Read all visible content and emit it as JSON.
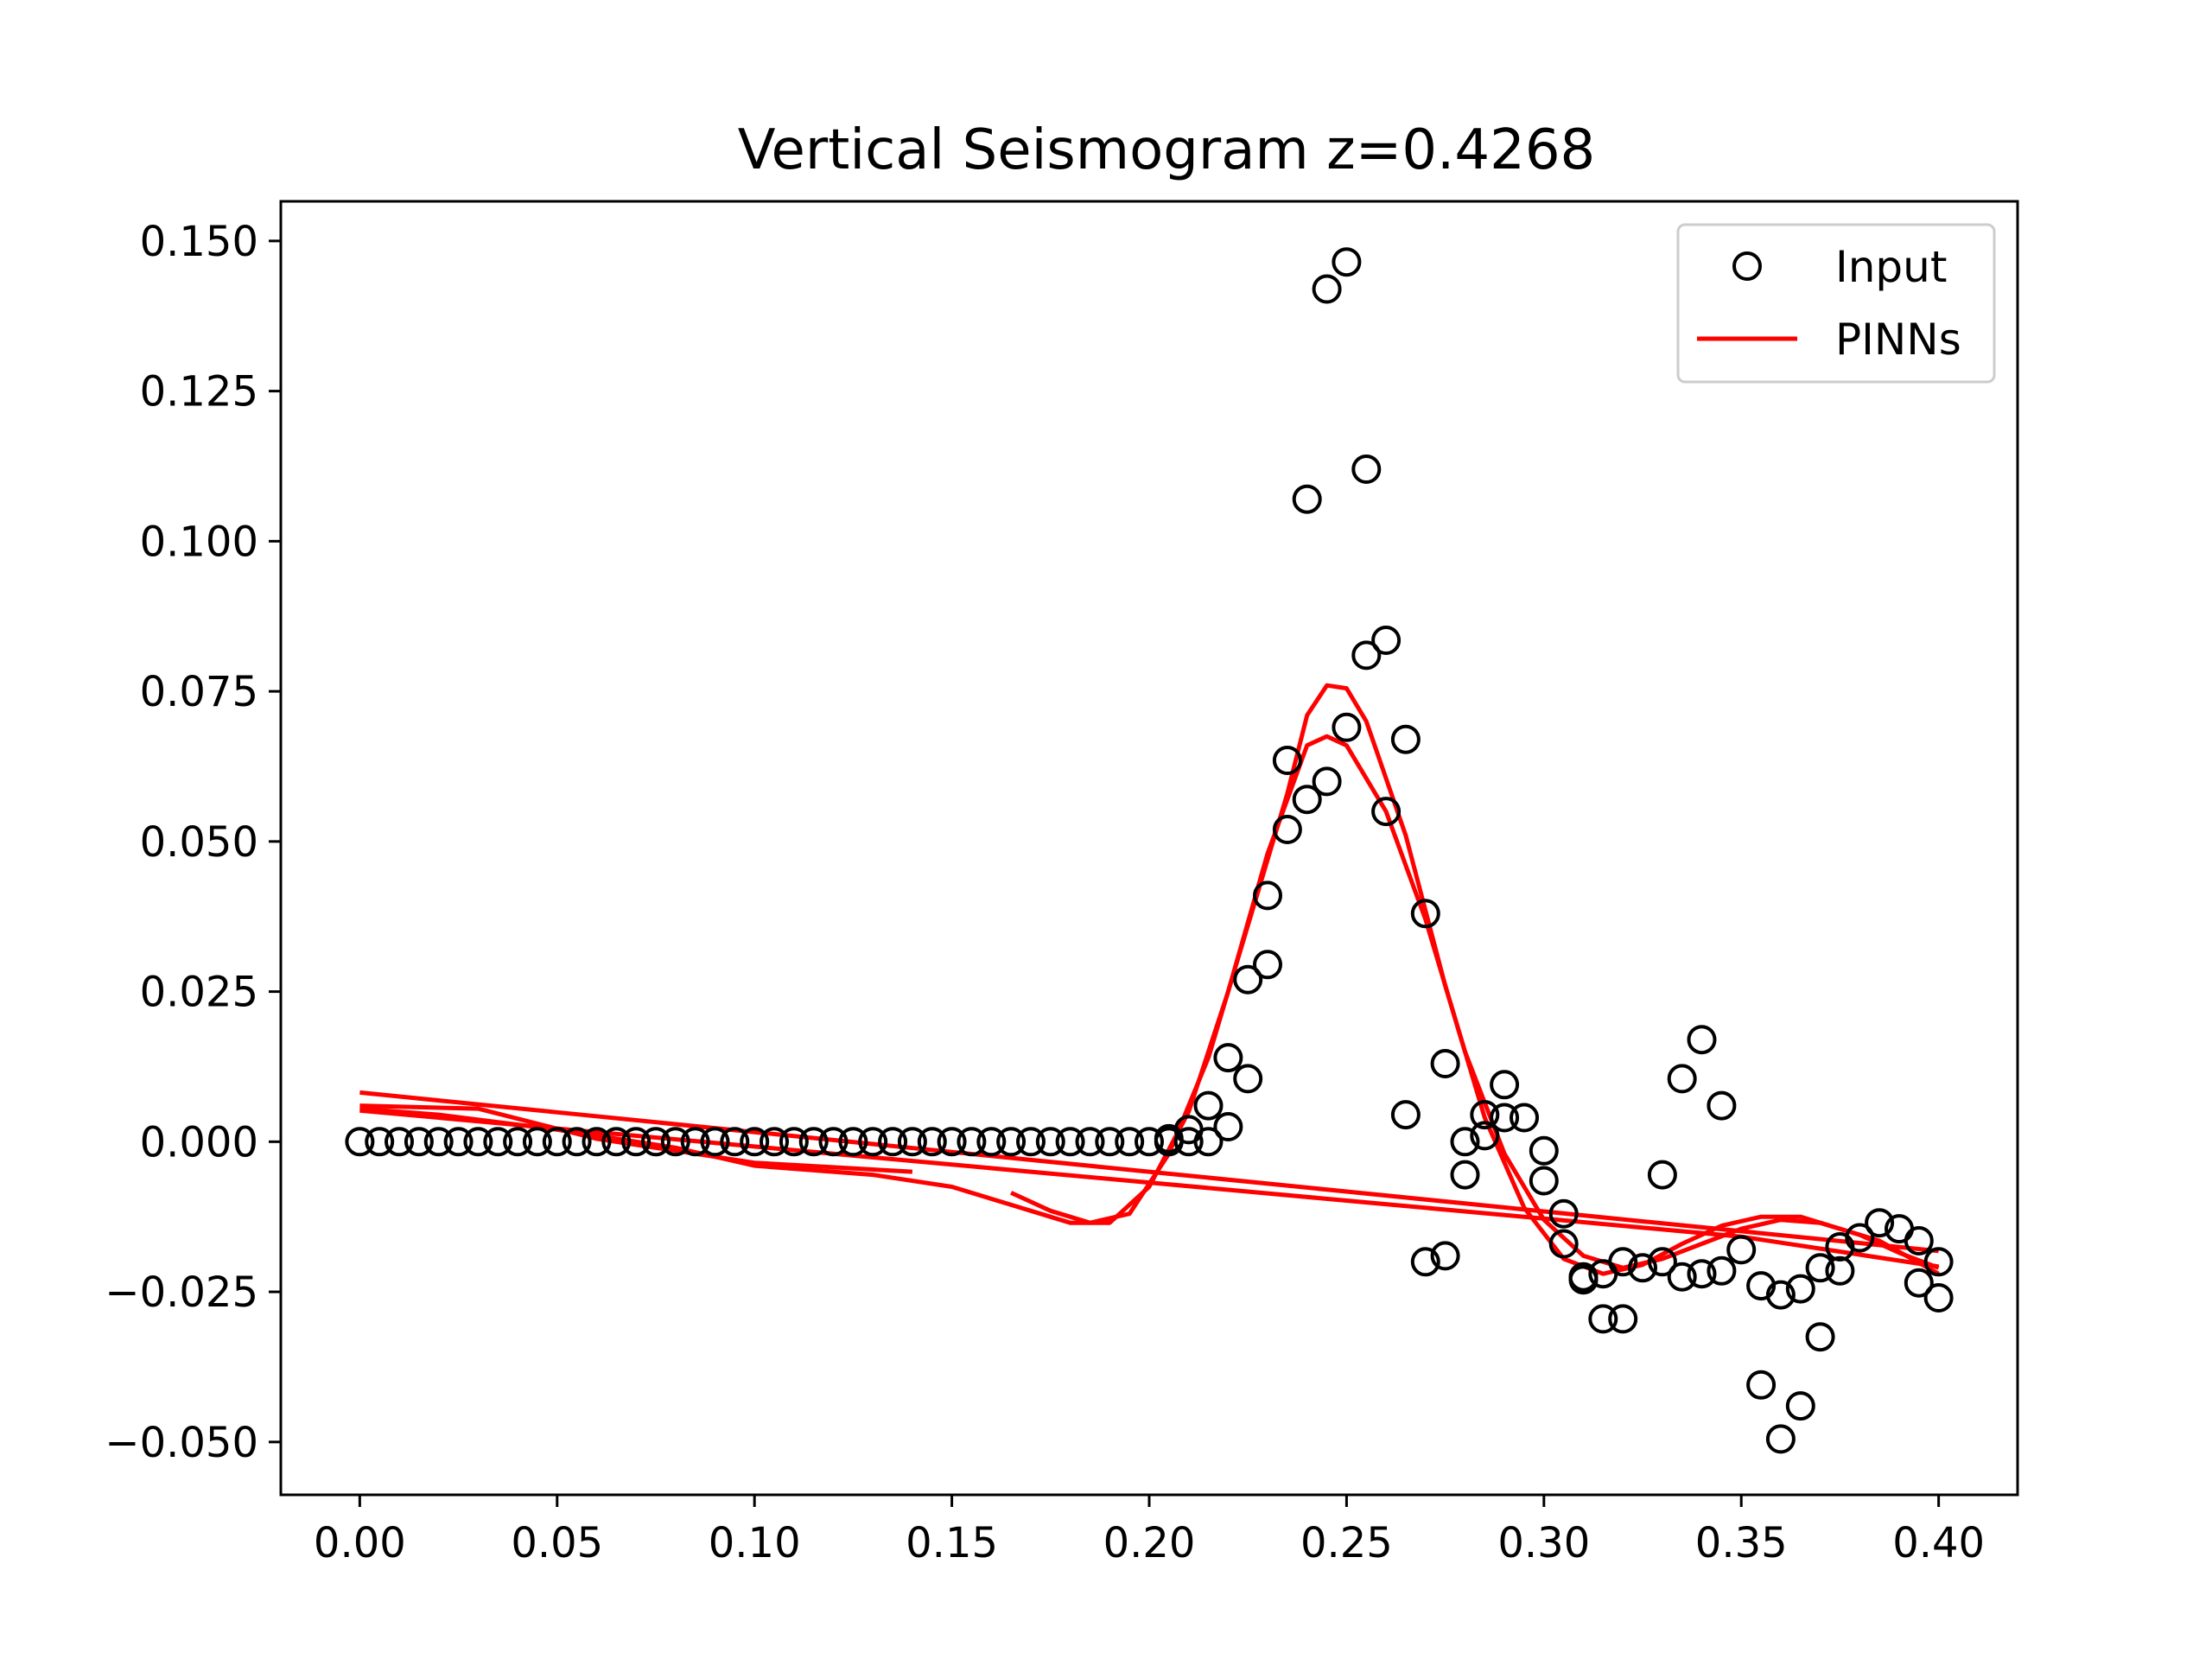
{
  "chart_data": {
    "type": "scatter",
    "title": "Vertical Seismogram z=0.4268",
    "xlabel": "",
    "ylabel": "",
    "xlim": [
      -0.02,
      0.42
    ],
    "ylim": [
      -0.0588,
      0.1566
    ],
    "xticks": [
      0.0,
      0.05,
      0.1,
      0.15,
      0.2,
      0.25,
      0.3,
      0.35,
      0.4
    ],
    "xtick_labels": [
      "0.00",
      "0.05",
      "0.10",
      "0.15",
      "0.20",
      "0.25",
      "0.30",
      "0.35",
      "0.40"
    ],
    "yticks": [
      -0.05,
      -0.025,
      0.0,
      0.025,
      0.05,
      0.075,
      0.1,
      0.125,
      0.15
    ],
    "ytick_labels": [
      "−0.050",
      "−0.025",
      "0.000",
      "0.025",
      "0.050",
      "0.075",
      "0.100",
      "0.125",
      "0.150"
    ],
    "grid": false,
    "legend_position": "top-right",
    "colors": {
      "input": "#000000",
      "pinns": "#ff0000",
      "axes": "#000000"
    },
    "series": [
      {
        "name": "Input",
        "marker": "open-circle",
        "points": [
          [
            0.0,
            0.0
          ],
          [
            0.005,
            0.0
          ],
          [
            0.01,
            0.0
          ],
          [
            0.015,
            0.0
          ],
          [
            0.02,
            0.0
          ],
          [
            0.025,
            0.0
          ],
          [
            0.03,
            0.0
          ],
          [
            0.035,
            0.0
          ],
          [
            0.04,
            0.0
          ],
          [
            0.045,
            0.0
          ],
          [
            0.05,
            0.0
          ],
          [
            0.055,
            0.0
          ],
          [
            0.06,
            0.0
          ],
          [
            0.065,
            0.0
          ],
          [
            0.07,
            0.0
          ],
          [
            0.075,
            0.0
          ],
          [
            0.08,
            0.0
          ],
          [
            0.085,
            0.0
          ],
          [
            0.09,
            0.0
          ],
          [
            0.095,
            0.0
          ],
          [
            0.1,
            0.0
          ],
          [
            0.105,
            0.0
          ],
          [
            0.11,
            0.0
          ],
          [
            0.115,
            0.0
          ],
          [
            0.12,
            0.0
          ],
          [
            0.125,
            0.0
          ],
          [
            0.13,
            0.0
          ],
          [
            0.135,
            0.0
          ],
          [
            0.14,
            0.0
          ],
          [
            0.145,
            0.0
          ],
          [
            0.15,
            0.0
          ],
          [
            0.155,
            0.0
          ],
          [
            0.16,
            0.0
          ],
          [
            0.165,
            0.0
          ],
          [
            0.17,
            0.0
          ],
          [
            0.175,
            0.0
          ],
          [
            0.18,
            0.0
          ],
          [
            0.185,
            0.0
          ],
          [
            0.19,
            0.0
          ],
          [
            0.195,
            0.0
          ],
          [
            0.2,
            0.0
          ],
          [
            0.205,
            0.0005
          ],
          [
            0.21,
            0.002
          ],
          [
            0.215,
            0.006
          ],
          [
            0.22,
            0.014
          ],
          [
            0.225,
            0.027
          ],
          [
            0.23,
            0.041
          ],
          [
            0.235,
            0.052
          ],
          [
            0.24,
            0.057
          ],
          [
            0.245,
            0.06
          ],
          [
            0.25,
            0.069
          ],
          [
            0.255,
            0.081
          ],
          [
            0.26,
            0.055
          ],
          [
            0.265,
            0.067
          ],
          [
            0.27,
            0.038
          ],
          [
            0.275,
            0.013
          ],
          [
            0.28,
            0.0
          ],
          [
            0.285,
            0.001
          ],
          [
            0.29,
            0.004
          ],
          [
            0.295,
            0.004
          ],
          [
            0.3,
            -0.0015
          ],
          [
            0.305,
            -0.012
          ],
          [
            0.31,
            -0.023
          ],
          [
            0.315,
            -0.022
          ],
          [
            0.32,
            -0.02
          ],
          [
            0.325,
            -0.021
          ],
          [
            0.33,
            -0.02
          ],
          [
            0.335,
            -0.0225
          ],
          [
            0.34,
            -0.022
          ],
          [
            0.345,
            -0.0215
          ],
          [
            0.35,
            -0.018
          ],
          [
            0.355,
            -0.024
          ],
          [
            0.36,
            -0.0255
          ],
          [
            0.365,
            -0.0245
          ],
          [
            0.37,
            -0.021
          ],
          [
            0.375,
            -0.0175
          ],
          [
            0.38,
            -0.016
          ],
          [
            0.385,
            -0.0135
          ],
          [
            0.39,
            -0.0145
          ],
          [
            0.395,
            -0.0165
          ],
          [
            0.4,
            -0.02
          ],
          [
            0.205,
            0.0
          ],
          [
            0.21,
            0.0
          ],
          [
            0.215,
            0.0
          ],
          [
            0.22,
            0.0025
          ],
          [
            0.225,
            0.0105
          ],
          [
            0.23,
            0.0295
          ],
          [
            0.235,
            0.0635
          ],
          [
            0.24,
            0.107
          ],
          [
            0.245,
            0.142
          ],
          [
            0.25,
            0.1465
          ],
          [
            0.255,
            0.112
          ],
          [
            0.26,
            0.0835
          ],
          [
            0.265,
            0.0045
          ],
          [
            0.27,
            -0.02
          ],
          [
            0.275,
            -0.019
          ],
          [
            0.28,
            -0.0055
          ],
          [
            0.285,
            0.0045
          ],
          [
            0.29,
            0.0095
          ],
          [
            0.3,
            -0.0065
          ],
          [
            0.305,
            -0.017
          ],
          [
            0.31,
            -0.0225
          ],
          [
            0.315,
            -0.0295
          ],
          [
            0.32,
            -0.0295
          ],
          [
            0.33,
            -0.0055
          ],
          [
            0.335,
            0.0105
          ],
          [
            0.34,
            0.017
          ],
          [
            0.345,
            0.006
          ],
          [
            0.355,
            -0.0405
          ],
          [
            0.36,
            -0.0495
          ],
          [
            0.365,
            -0.044
          ],
          [
            0.37,
            -0.0325
          ],
          [
            0.375,
            -0.0215
          ],
          [
            0.395,
            -0.0235
          ],
          [
            0.4,
            -0.026
          ]
        ]
      },
      {
        "name": "PINNs",
        "lines": [
          [
            [
              0.0,
              0.0055
            ],
            [
              0.02,
              0.0045
            ],
            [
              0.05,
              0.002
            ],
            [
              0.08,
              -0.001
            ],
            [
              0.1,
              -0.004
            ],
            [
              0.13,
              -0.0055
            ],
            [
              0.15,
              -0.0075
            ],
            [
              0.17,
              -0.0115
            ],
            [
              0.18,
              -0.0135
            ],
            [
              0.19,
              -0.0135
            ],
            [
              0.2,
              -0.0075
            ],
            [
              0.21,
              0.005
            ],
            [
              0.22,
              0.025
            ],
            [
              0.23,
              0.048
            ],
            [
              0.24,
              0.066
            ],
            [
              0.245,
              0.0675
            ],
            [
              0.25,
              0.066
            ],
            [
              0.26,
              0.055
            ],
            [
              0.27,
              0.037
            ],
            [
              0.28,
              0.015
            ],
            [
              0.29,
              -0.002
            ],
            [
              0.3,
              -0.013
            ],
            [
              0.31,
              -0.019
            ],
            [
              0.32,
              -0.021
            ],
            [
              0.33,
              -0.0195
            ],
            [
              0.34,
              -0.017
            ],
            [
              0.35,
              -0.0145
            ],
            [
              0.36,
              -0.013
            ],
            [
              0.37,
              -0.0135
            ],
            [
              0.38,
              -0.0155
            ],
            [
              0.39,
              -0.0185
            ],
            [
              0.4,
              -0.021
            ]
          ],
          [
            [
              0.165,
              -0.0085
            ],
            [
              0.175,
              -0.0115
            ],
            [
              0.185,
              -0.0135
            ],
            [
              0.195,
              -0.012
            ],
            [
              0.205,
              -0.002
            ],
            [
              0.215,
              0.014
            ],
            [
              0.225,
              0.036
            ],
            [
              0.235,
              0.058
            ],
            [
              0.24,
              0.071
            ],
            [
              0.245,
              0.076
            ],
            [
              0.25,
              0.0755
            ],
            [
              0.255,
              0.07
            ],
            [
              0.265,
              0.051
            ],
            [
              0.275,
              0.026
            ],
            [
              0.285,
              0.004
            ],
            [
              0.295,
              -0.011
            ],
            [
              0.305,
              -0.0195
            ],
            [
              0.315,
              -0.022
            ],
            [
              0.325,
              -0.0205
            ],
            [
              0.335,
              -0.017
            ],
            [
              0.345,
              -0.014
            ],
            [
              0.355,
              -0.0125
            ],
            [
              0.365,
              -0.0125
            ],
            [
              0.375,
              -0.0145
            ],
            [
              0.385,
              -0.0165
            ],
            [
              0.4,
              -0.022
            ]
          ],
          [
            [
              0.0,
              0.0082
            ],
            [
              0.05,
              0.0049
            ],
            [
              0.1,
              0.0016
            ],
            [
              0.15,
              -0.0017
            ],
            [
              0.2,
              -0.005
            ],
            [
              0.25,
              -0.0083
            ],
            [
              0.3,
              -0.0116
            ],
            [
              0.35,
              -0.0149
            ],
            [
              0.4,
              -0.0182
            ]
          ],
          [
            [
              0.0,
              0.0052
            ],
            [
              0.05,
              0.0022
            ],
            [
              0.1,
              -0.0008
            ],
            [
              0.15,
              -0.0038
            ],
            [
              0.2,
              -0.0068
            ],
            [
              0.25,
              -0.0098
            ],
            [
              0.3,
              -0.0128
            ],
            [
              0.35,
              -0.0158
            ],
            [
              0.4,
              -0.0208
            ]
          ],
          [
            [
              0.0,
              0.006
            ],
            [
              0.03,
              0.0055
            ],
            [
              0.06,
              0.0005
            ],
            [
              0.1,
              -0.0035
            ],
            [
              0.14,
              -0.005
            ]
          ]
        ]
      }
    ]
  }
}
